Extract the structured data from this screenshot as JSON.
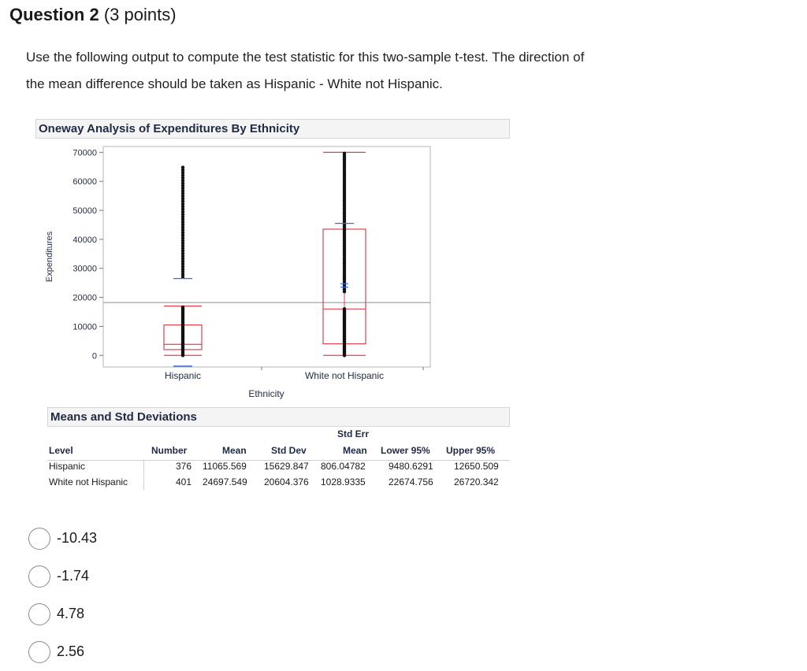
{
  "question": {
    "title": "Question 2",
    "points": "(3 points)",
    "prompt_line1": "Use the following output to compute the test statistic for this two-sample t-test. The direction of",
    "prompt_line2": "the mean difference should be taken as Hispanic - White not Hispanic."
  },
  "chart_panel": {
    "title": "Oneway Analysis of Expenditures By Ethnicity"
  },
  "chart_data": {
    "type": "scatter",
    "title": "Oneway Analysis of Expenditures By Ethnicity",
    "xlabel": "Ethnicity",
    "ylabel": "Expenditures",
    "categories": [
      "Hispanic",
      "White not Hispanic"
    ],
    "yticks": [
      "70000",
      "60000",
      "50000",
      "40000",
      "30000",
      "20000",
      "10000",
      "0"
    ],
    "ylim": [
      -4000,
      72000
    ],
    "grand_mean": 18200,
    "boxes": [
      {
        "category": "Hispanic",
        "q1": 2000,
        "median": 3800,
        "q3": 10500,
        "whisker_low": 0,
        "whisker_high": 17000,
        "mean": 11065.569,
        "upper_outlier_whisker": 26500
      },
      {
        "category": "White not Hispanic",
        "q1": 4000,
        "median": 16000,
        "q3": 43500,
        "whisker_low": 0,
        "whisker_high": 70000,
        "mean": 24697.549,
        "upper_ci": 45500
      }
    ]
  },
  "means_panel": {
    "title": "Means and Std Deviations",
    "headers": {
      "level": "Level",
      "number": "Number",
      "mean": "Mean",
      "std_dev": "Std Dev",
      "std_err_top": "Std Err",
      "std_err_bottom": "Mean",
      "lower95": "Lower 95%",
      "upper95": "Upper 95%"
    },
    "rows": [
      {
        "level": "Hispanic",
        "number": "376",
        "mean": "11065.569",
        "std_dev": "15629.847",
        "std_err": "806.04782",
        "lower95": "9480.6291",
        "upper95": "12650.509"
      },
      {
        "level": "White not Hispanic",
        "number": "401",
        "mean": "24697.549",
        "std_dev": "20604.376",
        "std_err": "1028.9335",
        "lower95": "22674.756",
        "upper95": "26720.342"
      }
    ]
  },
  "choices": [
    "-10.43",
    "-1.74",
    "4.78",
    "2.56"
  ]
}
